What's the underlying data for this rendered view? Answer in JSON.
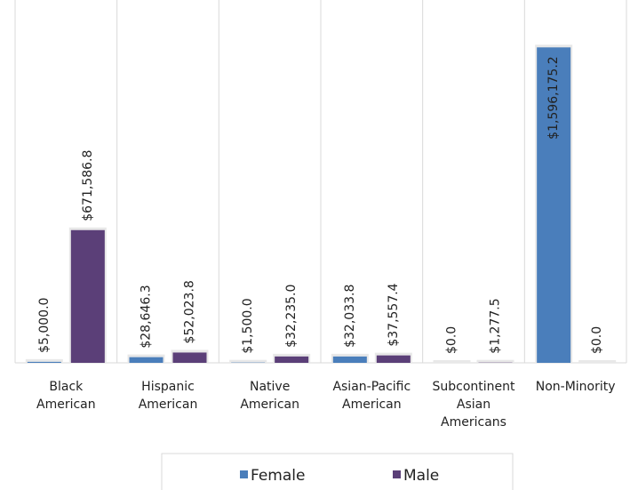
{
  "chart_data": {
    "type": "bar",
    "categories": [
      "Black American",
      "Hispanic American",
      "Native American",
      "Asian-Pacific American",
      "Subcontinent Asian Americans",
      "Non-Minority"
    ],
    "series": [
      {
        "name": "Female",
        "color": "#4a7ebb",
        "values": [
          5000,
          28646.3,
          1500,
          32033.8,
          0,
          1596175.2
        ],
        "value_labels": [
          "$5,000.0",
          "$28,646.3",
          "$1,500.0",
          "$32,033.8",
          "$0.0",
          "$1,596,175.2"
        ]
      },
      {
        "name": "Male",
        "color": "#5b3f78",
        "values": [
          671586.8,
          52023.8,
          32235,
          37557.4,
          1277.5,
          0
        ],
        "value_labels": [
          "$671,586.8",
          "$52,023.8",
          "$32,235.0",
          "$37,557.4",
          "$1,277.5",
          "$0.0"
        ]
      }
    ],
    "ylim": [
      0,
      1800000
    ],
    "legend": "bottom"
  }
}
